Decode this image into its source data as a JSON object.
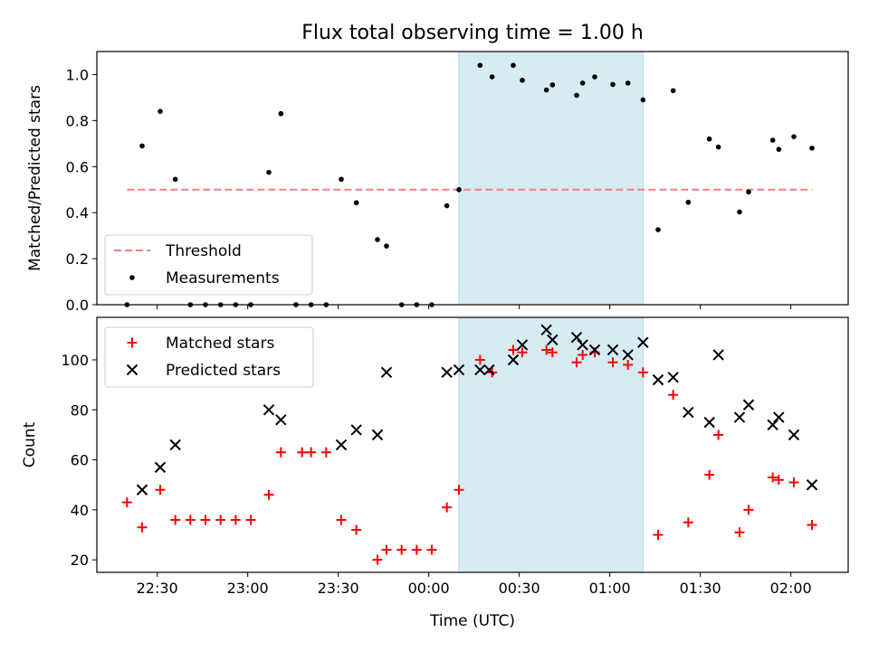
{
  "figure": {
    "title": "Flux total observing time = 1.00 h",
    "xlabel": "Time (UTC)",
    "x_tick_labels": [
      "22:30",
      "23:00",
      "23:30",
      "00:00",
      "00:30",
      "01:00",
      "01:30",
      "02:00"
    ]
  },
  "colors": {
    "threshold": "#f08080",
    "measurements": "#000000",
    "matched": "#ff0000",
    "predicted": "#000000",
    "highlight": "#add8e6"
  },
  "chart_data": [
    {
      "type": "scatter",
      "ylabel": "Matched/Predicted stars",
      "ylim": [
        0,
        1.1
      ],
      "y_ticks": [
        "0.0",
        "0.2",
        "0.4",
        "0.6",
        "0.8",
        "1.0"
      ],
      "x_unit": "minutes after 22:00 UTC",
      "xlim": [
        10,
        259
      ],
      "highlight_interval": [
        "00:10",
        "01:11"
      ],
      "legend": {
        "placement": "lower-left",
        "entries": [
          "Threshold",
          "Measurements"
        ]
      },
      "threshold": {
        "name": "Threshold",
        "value": 0.5,
        "x_range": [
          "22:20",
          "02:07"
        ]
      },
      "series": [
        {
          "name": "Measurements",
          "marker": "dot",
          "points": [
            [
              "22:20",
              0.0
            ],
            [
              "22:25",
              0.69
            ],
            [
              "22:31",
              0.84
            ],
            [
              "22:36",
              0.545
            ],
            [
              "22:41",
              0.0
            ],
            [
              "22:46",
              0.0
            ],
            [
              "22:51",
              0.0
            ],
            [
              "22:56",
              0.0
            ],
            [
              "23:01",
              0.0
            ],
            [
              "23:07",
              0.575
            ],
            [
              "23:11",
              0.83
            ],
            [
              "23:16",
              0.0
            ],
            [
              "23:21",
              0.0
            ],
            [
              "23:26",
              0.0
            ],
            [
              "23:31",
              0.545
            ],
            [
              "23:36",
              0.443
            ],
            [
              "23:43",
              0.283
            ],
            [
              "23:46",
              0.255
            ],
            [
              "23:51",
              0.0
            ],
            [
              "23:56",
              0.0
            ],
            [
              "00:01",
              0.0
            ],
            [
              "00:06",
              0.43
            ],
            [
              "00:10",
              0.5
            ],
            [
              "00:17",
              1.04
            ],
            [
              "00:21",
              0.99
            ],
            [
              "00:28",
              1.04
            ],
            [
              "00:31",
              0.975
            ],
            [
              "00:39",
              0.933
            ],
            [
              "00:41",
              0.955
            ],
            [
              "00:49",
              0.91
            ],
            [
              "00:51",
              0.963
            ],
            [
              "00:55",
              0.99
            ],
            [
              "01:01",
              0.957
            ],
            [
              "01:06",
              0.963
            ],
            [
              "01:11",
              0.89
            ],
            [
              "01:16",
              0.326
            ],
            [
              "01:21",
              0.93
            ],
            [
              "01:26",
              0.445
            ],
            [
              "01:33",
              0.72
            ],
            [
              "01:36",
              0.685
            ],
            [
              "01:43",
              0.403
            ],
            [
              "01:46",
              0.49
            ],
            [
              "01:54",
              0.715
            ],
            [
              "01:56",
              0.675
            ],
            [
              "02:01",
              0.73
            ],
            [
              "02:07",
              0.68
            ]
          ]
        }
      ]
    },
    {
      "type": "scatter",
      "ylabel": "Count",
      "ylim": [
        15,
        117
      ],
      "y_ticks": [
        "20",
        "40",
        "60",
        "80",
        "100"
      ],
      "x_unit": "minutes after 22:00 UTC",
      "xlim": [
        10,
        259
      ],
      "highlight_interval": [
        "00:10",
        "01:11"
      ],
      "legend": {
        "placement": "upper-left",
        "entries": [
          "Matched stars",
          "Predicted stars"
        ]
      },
      "series": [
        {
          "name": "Matched stars",
          "marker": "plus",
          "points": [
            [
              "22:20",
              43
            ],
            [
              "22:25",
              33
            ],
            [
              "22:31",
              48
            ],
            [
              "22:36",
              36
            ],
            [
              "22:41",
              36
            ],
            [
              "22:46",
              36
            ],
            [
              "22:51",
              36
            ],
            [
              "22:56",
              36
            ],
            [
              "23:01",
              36
            ],
            [
              "23:07",
              46
            ],
            [
              "23:11",
              63
            ],
            [
              "23:18",
              63
            ],
            [
              "23:21",
              63
            ],
            [
              "23:26",
              63
            ],
            [
              "23:31",
              36
            ],
            [
              "23:36",
              32
            ],
            [
              "23:43",
              20
            ],
            [
              "23:46",
              24
            ],
            [
              "23:51",
              24
            ],
            [
              "23:56",
              24
            ],
            [
              "00:01",
              24
            ],
            [
              "00:06",
              41
            ],
            [
              "00:10",
              48
            ],
            [
              "00:17",
              100
            ],
            [
              "00:21",
              95
            ],
            [
              "00:28",
              104
            ],
            [
              "00:31",
              103
            ],
            [
              "00:39",
              104
            ],
            [
              "00:41",
              103
            ],
            [
              "00:49",
              99
            ],
            [
              "00:51",
              102
            ],
            [
              "00:55",
              103
            ],
            [
              "01:01",
              99
            ],
            [
              "01:06",
              98
            ],
            [
              "01:11",
              95
            ],
            [
              "01:16",
              30
            ],
            [
              "01:21",
              86
            ],
            [
              "01:26",
              35
            ],
            [
              "01:33",
              54
            ],
            [
              "01:36",
              70
            ],
            [
              "01:43",
              31
            ],
            [
              "01:46",
              40
            ],
            [
              "01:54",
              53
            ],
            [
              "01:56",
              52
            ],
            [
              "02:01",
              51
            ],
            [
              "02:07",
              34
            ]
          ]
        },
        {
          "name": "Predicted stars",
          "marker": "x",
          "points": [
            [
              "22:25",
              48
            ],
            [
              "22:31",
              57
            ],
            [
              "22:36",
              66
            ],
            [
              "23:07",
              80
            ],
            [
              "23:11",
              76
            ],
            [
              "23:31",
              66
            ],
            [
              "23:36",
              72
            ],
            [
              "23:43",
              70
            ],
            [
              "23:46",
              95
            ],
            [
              "00:06",
              95
            ],
            [
              "00:10",
              96
            ],
            [
              "00:17",
              96
            ],
            [
              "00:20",
              96
            ],
            [
              "00:28",
              100
            ],
            [
              "00:31",
              106
            ],
            [
              "00:39",
              112
            ],
            [
              "00:41",
              108
            ],
            [
              "00:49",
              109
            ],
            [
              "00:51",
              106
            ],
            [
              "00:55",
              104
            ],
            [
              "01:01",
              104
            ],
            [
              "01:06",
              102
            ],
            [
              "01:11",
              107
            ],
            [
              "01:16",
              92
            ],
            [
              "01:21",
              93
            ],
            [
              "01:26",
              79
            ],
            [
              "01:33",
              75
            ],
            [
              "01:36",
              102
            ],
            [
              "01:43",
              77
            ],
            [
              "01:46",
              82
            ],
            [
              "01:54",
              74
            ],
            [
              "01:56",
              77
            ],
            [
              "02:01",
              70
            ],
            [
              "02:07",
              50
            ]
          ]
        }
      ]
    }
  ]
}
